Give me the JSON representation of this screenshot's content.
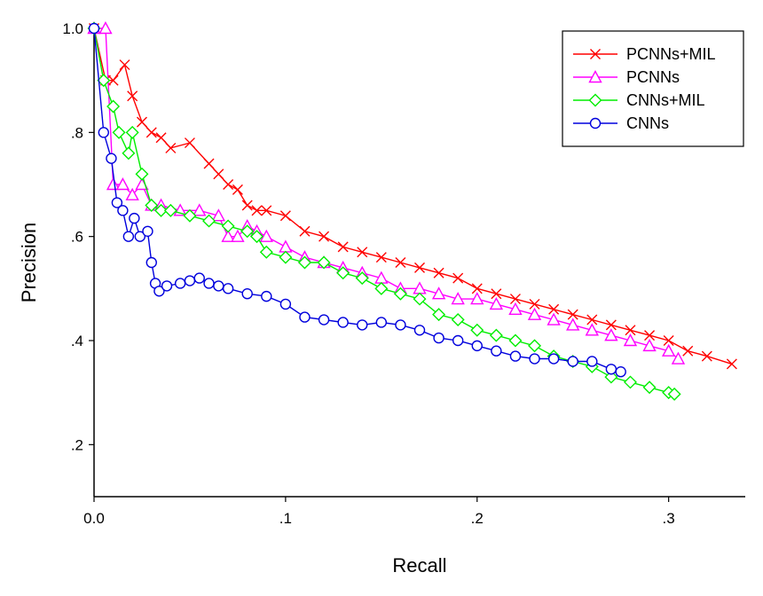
{
  "chart_data": {
    "type": "line",
    "xlabel": "Recall",
    "ylabel": "Precision",
    "xlim": [
      0,
      0.34
    ],
    "ylim": [
      0.1,
      1.0
    ],
    "x_ticks": [
      0.0,
      0.1,
      0.2,
      0.3
    ],
    "x_tick_labels": [
      "0.0",
      ".1",
      ".2",
      ".3"
    ],
    "y_ticks": [
      0.2,
      0.4,
      0.6,
      0.8,
      1.0
    ],
    "y_tick_labels": [
      ".2",
      ".4",
      ".6",
      ".8",
      "1.0"
    ],
    "grid": false,
    "legend_position": "top-right",
    "series": [
      {
        "name": "PCNNs+MIL",
        "color": "#ff0000",
        "marker": "x",
        "x": [
          0.0,
          0.006,
          0.01,
          0.016,
          0.02,
          0.025,
          0.03,
          0.035,
          0.04,
          0.05,
          0.06,
          0.065,
          0.07,
          0.075,
          0.08,
          0.085,
          0.09,
          0.1,
          0.11,
          0.12,
          0.13,
          0.14,
          0.15,
          0.16,
          0.17,
          0.18,
          0.19,
          0.2,
          0.21,
          0.22,
          0.23,
          0.24,
          0.25,
          0.26,
          0.27,
          0.28,
          0.29,
          0.3,
          0.31,
          0.32,
          0.333
        ],
        "y": [
          1.0,
          0.9,
          0.9,
          0.93,
          0.87,
          0.82,
          0.8,
          0.79,
          0.77,
          0.78,
          0.74,
          0.72,
          0.7,
          0.69,
          0.66,
          0.65,
          0.65,
          0.64,
          0.61,
          0.6,
          0.58,
          0.57,
          0.56,
          0.55,
          0.54,
          0.53,
          0.52,
          0.5,
          0.49,
          0.48,
          0.47,
          0.46,
          0.45,
          0.44,
          0.43,
          0.42,
          0.41,
          0.4,
          0.38,
          0.37,
          0.355
        ]
      },
      {
        "name": "PCNNs",
        "color": "#ff00ff",
        "marker": "triangle",
        "x": [
          0.0,
          0.006,
          0.01,
          0.015,
          0.02,
          0.025,
          0.03,
          0.035,
          0.045,
          0.055,
          0.065,
          0.07,
          0.075,
          0.08,
          0.085,
          0.09,
          0.1,
          0.11,
          0.12,
          0.13,
          0.14,
          0.15,
          0.16,
          0.17,
          0.18,
          0.19,
          0.2,
          0.21,
          0.22,
          0.23,
          0.24,
          0.25,
          0.26,
          0.27,
          0.28,
          0.29,
          0.3,
          0.305
        ],
        "y": [
          1.0,
          1.0,
          0.7,
          0.7,
          0.68,
          0.7,
          0.66,
          0.66,
          0.65,
          0.65,
          0.64,
          0.6,
          0.6,
          0.62,
          0.61,
          0.6,
          0.58,
          0.56,
          0.55,
          0.54,
          0.53,
          0.52,
          0.5,
          0.5,
          0.49,
          0.48,
          0.48,
          0.47,
          0.46,
          0.45,
          0.44,
          0.43,
          0.42,
          0.41,
          0.4,
          0.39,
          0.38,
          0.365
        ]
      },
      {
        "name": "CNNs+MIL",
        "color": "#00ee00",
        "marker": "diamond",
        "x": [
          0.0,
          0.005,
          0.01,
          0.013,
          0.018,
          0.02,
          0.025,
          0.03,
          0.035,
          0.04,
          0.05,
          0.06,
          0.07,
          0.08,
          0.085,
          0.09,
          0.1,
          0.11,
          0.12,
          0.13,
          0.14,
          0.15,
          0.16,
          0.17,
          0.18,
          0.19,
          0.2,
          0.21,
          0.22,
          0.23,
          0.24,
          0.25,
          0.26,
          0.27,
          0.28,
          0.29,
          0.3,
          0.303
        ],
        "y": [
          1.0,
          0.9,
          0.85,
          0.8,
          0.76,
          0.8,
          0.72,
          0.66,
          0.65,
          0.65,
          0.64,
          0.63,
          0.62,
          0.61,
          0.6,
          0.57,
          0.56,
          0.55,
          0.55,
          0.53,
          0.52,
          0.5,
          0.49,
          0.48,
          0.45,
          0.44,
          0.42,
          0.41,
          0.4,
          0.39,
          0.37,
          0.36,
          0.35,
          0.33,
          0.32,
          0.31,
          0.3,
          0.297
        ]
      },
      {
        "name": "CNNs",
        "color": "#0000dd",
        "marker": "circle",
        "x": [
          0.0,
          0.005,
          0.009,
          0.012,
          0.015,
          0.018,
          0.021,
          0.024,
          0.028,
          0.03,
          0.032,
          0.034,
          0.038,
          0.045,
          0.05,
          0.055,
          0.06,
          0.065,
          0.07,
          0.08,
          0.09,
          0.1,
          0.11,
          0.12,
          0.13,
          0.14,
          0.15,
          0.16,
          0.17,
          0.18,
          0.19,
          0.2,
          0.21,
          0.22,
          0.23,
          0.24,
          0.25,
          0.26,
          0.27,
          0.275
        ],
        "y": [
          1.0,
          0.8,
          0.75,
          0.665,
          0.65,
          0.6,
          0.635,
          0.6,
          0.61,
          0.55,
          0.51,
          0.495,
          0.505,
          0.51,
          0.515,
          0.52,
          0.51,
          0.505,
          0.5,
          0.49,
          0.485,
          0.47,
          0.445,
          0.44,
          0.435,
          0.43,
          0.435,
          0.43,
          0.42,
          0.405,
          0.4,
          0.39,
          0.38,
          0.37,
          0.365,
          0.365,
          0.36,
          0.36,
          0.345,
          0.34
        ]
      }
    ]
  }
}
